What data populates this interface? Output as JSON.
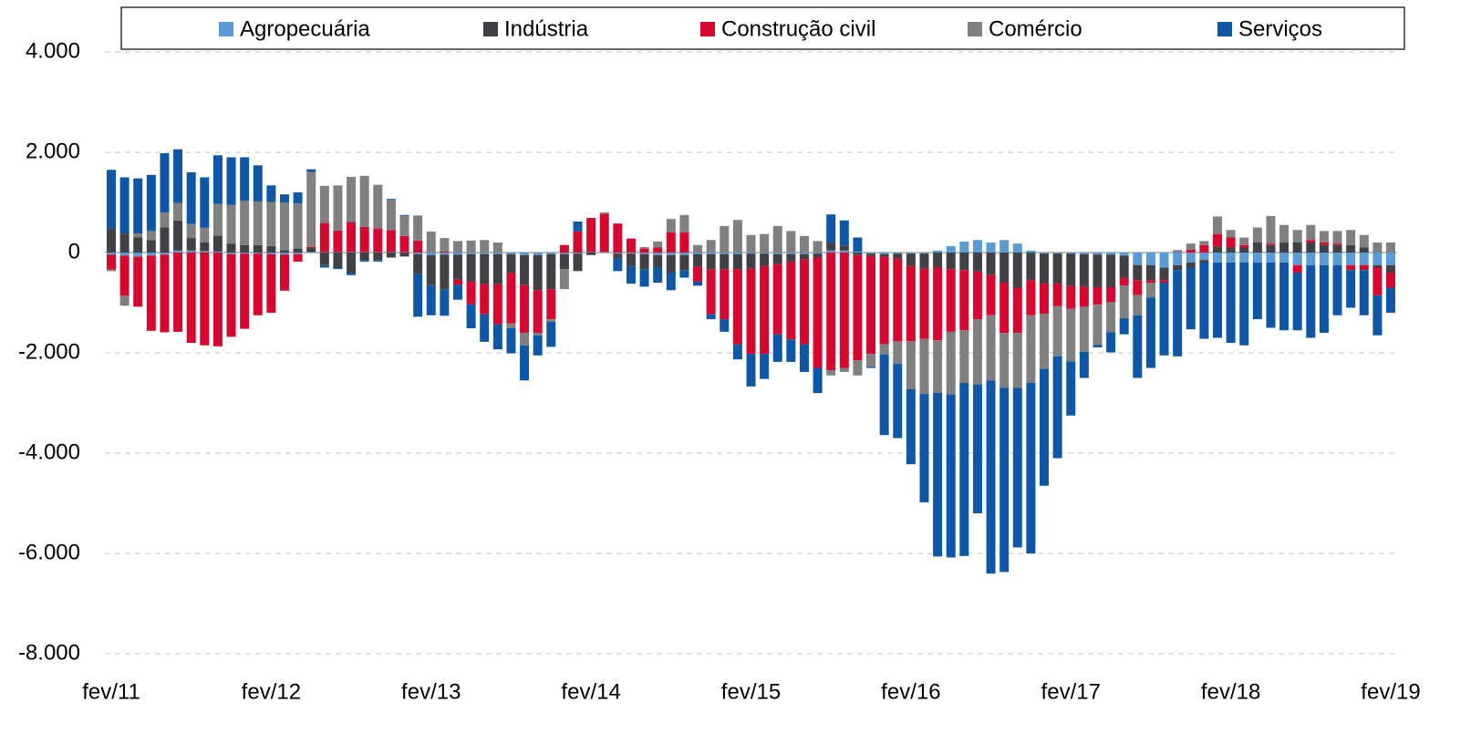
{
  "chart_data": {
    "type": "bar",
    "stacked": true,
    "legend": "top",
    "grid": true,
    "ylim": [
      -8000,
      4000
    ],
    "yticks": [
      {
        "value": 4000,
        "label": "4.000"
      },
      {
        "value": 2000,
        "label": "2.000"
      },
      0,
      {
        "value": -2000,
        "label": "-2.000"
      },
      {
        "value": -4000,
        "label": "-4.000"
      },
      {
        "value": -6000,
        "label": "-6.000"
      },
      {
        "value": -8000,
        "label": "-8.000"
      }
    ],
    "categories": [
      "fev/11",
      null,
      null,
      null,
      null,
      null,
      null,
      null,
      null,
      null,
      null,
      null,
      "fev/12",
      null,
      null,
      null,
      null,
      null,
      null,
      null,
      null,
      null,
      null,
      null,
      "fev/13",
      null,
      null,
      null,
      null,
      null,
      null,
      null,
      null,
      null,
      null,
      null,
      "fev/14",
      null,
      null,
      null,
      null,
      null,
      null,
      null,
      null,
      null,
      null,
      null,
      "fev/15",
      null,
      null,
      null,
      null,
      null,
      null,
      null,
      null,
      null,
      null,
      null,
      "fev/16",
      null,
      null,
      null,
      null,
      null,
      null,
      null,
      null,
      null,
      null,
      null,
      "fev/17",
      null,
      null,
      null,
      null,
      null,
      null,
      null,
      null,
      null,
      null,
      null,
      "fev/18",
      null,
      null,
      null,
      null,
      null,
      null,
      null,
      null,
      null,
      null,
      null,
      "fev/19"
    ],
    "series": [
      {
        "name": "Agropecuária",
        "color": "#5b9bd5",
        "values": [
          -40,
          -60,
          -80,
          -60,
          -40,
          40,
          40,
          30,
          20,
          -30,
          -20,
          -20,
          -30,
          -40,
          -30,
          10,
          10,
          10,
          10,
          10,
          10,
          10,
          10,
          -30,
          -50,
          -40,
          -40,
          -30,
          -30,
          -30,
          -30,
          -50,
          -50,
          -30,
          -30,
          -20,
          10,
          10,
          -20,
          -20,
          -30,
          -50,
          -50,
          -50,
          -30,
          -30,
          -30,
          -30,
          -20,
          -20,
          -30,
          -30,
          -30,
          -20,
          40,
          40,
          20,
          -20,
          -30,
          -20,
          -20,
          -20,
          40,
          130,
          220,
          250,
          200,
          250,
          180,
          40,
          -20,
          -20,
          -20,
          -30,
          -40,
          -40,
          -60,
          -250,
          -250,
          -300,
          -250,
          -200,
          -150,
          -200,
          -200,
          -200,
          -200,
          -200,
          -200,
          -250,
          -250,
          -250,
          -250,
          -250,
          -250,
          -250,
          -250
        ]
      },
      {
        "name": "Indústria",
        "color": "#404045",
        "values": [
          480,
          380,
          300,
          250,
          500,
          600,
          250,
          170,
          320,
          180,
          150,
          150,
          130,
          50,
          80,
          80,
          -250,
          -300,
          -400,
          -150,
          -150,
          -100,
          -80,
          -400,
          -600,
          -700,
          -500,
          -550,
          -600,
          -600,
          -380,
          -600,
          -700,
          -700,
          -300,
          -350,
          -50,
          0,
          -100,
          -250,
          -300,
          -250,
          -350,
          -300,
          -250,
          -300,
          -300,
          -300,
          -300,
          -250,
          -200,
          -150,
          -100,
          -80,
          150,
          100,
          -50,
          -50,
          -50,
          -100,
          -250,
          -300,
          -300,
          -330,
          -350,
          -380,
          -450,
          -600,
          -700,
          -550,
          -600,
          -600,
          -650,
          -650,
          -650,
          -650,
          -450,
          -300,
          -300,
          -250,
          -100,
          -100,
          -50,
          120,
          100,
          100,
          200,
          150,
          200,
          200,
          200,
          150,
          150,
          150,
          100,
          -50,
          -150
        ]
      },
      {
        "name": "Construção civil",
        "color": "#d6082f",
        "values": [
          -300,
          -800,
          -1000,
          -1500,
          -1550,
          -1580,
          -1800,
          -1850,
          -1870,
          -1650,
          -1500,
          -1230,
          -1170,
          -720,
          -150,
          20,
          580,
          430,
          600,
          500,
          470,
          440,
          320,
          240,
          0,
          20,
          -100,
          -450,
          -600,
          -800,
          -1000,
          -950,
          -850,
          -600,
          150,
          420,
          680,
          760,
          580,
          280,
          80,
          100,
          400,
          400,
          -300,
          -900,
          -1000,
          -1500,
          -1700,
          -1750,
          -1400,
          -1550,
          -1700,
          -2200,
          -2350,
          -2300,
          -2100,
          -1950,
          -1750,
          -1650,
          -1500,
          -1400,
          -1450,
          -1250,
          -1200,
          -950,
          -800,
          -1000,
          -900,
          -700,
          -600,
          -450,
          -450,
          -400,
          -350,
          -300,
          -150,
          -300,
          -50,
          -50,
          0,
          60,
          150,
          250,
          200,
          50,
          0,
          30,
          0,
          -150,
          50,
          50,
          30,
          -100,
          -100,
          -550,
          -300
        ]
      },
      {
        "name": "Comércio",
        "color": "#808080",
        "values": [
          -30,
          -200,
          80,
          180,
          300,
          350,
          280,
          300,
          630,
          770,
          880,
          870,
          880,
          950,
          900,
          1500,
          740,
          900,
          900,
          1020,
          870,
          600,
          400,
          500,
          420,
          270,
          230,
          240,
          250,
          200,
          -100,
          -250,
          -50,
          -50,
          -400,
          0,
          0,
          30,
          0,
          0,
          30,
          120,
          270,
          350,
          150,
          250,
          530,
          650,
          350,
          370,
          530,
          430,
          330,
          230,
          -100,
          -80,
          -300,
          -250,
          -200,
          -450,
          -950,
          -1100,
          -1050,
          -1250,
          -1050,
          -1300,
          -1300,
          -1100,
          -1100,
          -1350,
          -1100,
          -1000,
          -1050,
          -900,
          -800,
          -600,
          -650,
          -400,
          -300,
          0,
          50,
          120,
          80,
          350,
          150,
          150,
          300,
          550,
          350,
          250,
          300,
          230,
          250,
          300,
          250,
          200,
          200
        ]
      },
      {
        "name": "Serviços",
        "color": "#0d57a6",
        "values": [
          1170,
          1120,
          1100,
          1120,
          1180,
          1070,
          1030,
          1000,
          970,
          950,
          870,
          720,
          330,
          160,
          220,
          50,
          -50,
          -30,
          -50,
          -30,
          -30,
          20,
          20,
          -850,
          -600,
          -520,
          -300,
          -480,
          -550,
          -500,
          -500,
          -700,
          -400,
          -500,
          0,
          200,
          0,
          0,
          -250,
          -350,
          -350,
          -300,
          -350,
          -150,
          -80,
          -100,
          -250,
          -300,
          -650,
          -500,
          -550,
          -450,
          -550,
          -500,
          570,
          500,
          280,
          -30,
          -1610,
          -1480,
          -1500,
          -2160,
          -3260,
          -3250,
          -3450,
          -2570,
          -3850,
          -3670,
          -3180,
          -3400,
          -2330,
          -2030,
          -1080,
          -520,
          -50,
          -400,
          -320,
          -1250,
          -1400,
          -1450,
          -1720,
          -1230,
          -1520,
          -1500,
          -1600,
          -1650,
          -1130,
          -1300,
          -1350,
          -1150,
          -1450,
          -1350,
          -1000,
          -750,
          -900,
          -800,
          -500
        ]
      }
    ]
  }
}
